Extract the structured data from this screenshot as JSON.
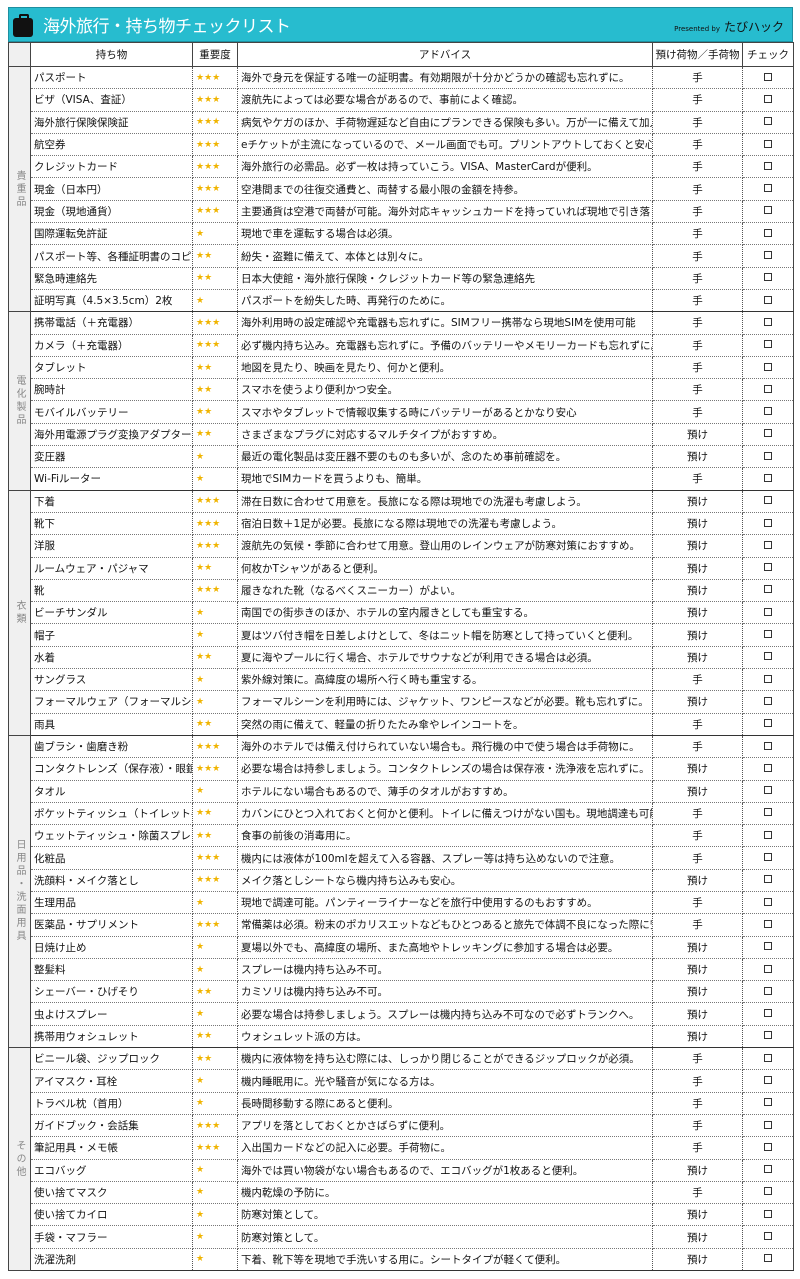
{
  "header": {
    "title": "海外旅行・持ち物チェックリスト",
    "presented_by": "Presented by",
    "brand": "たびハック",
    "accent_color": "#27bccf"
  },
  "columns": {
    "item": "持ち物",
    "importance": "重要度",
    "advice": "アドバイス",
    "baggage": "預け荷物／手荷物",
    "check": "チェック"
  },
  "star_color": "#f0b400",
  "categories": [
    {
      "name": "貴重品",
      "rows": [
        [
          "パスポート",
          "★★★",
          "海外で身元を保証する唯一の証明書。有効期限が十分かどうかの確認も忘れずに。",
          "手"
        ],
        [
          "ビザ（VISA、査証）",
          "★★★",
          "渡航先によっては必要な場合があるので、事前によく確認。",
          "手"
        ],
        [
          "海外旅行保険保険証",
          "★★★",
          "病気やケガのほか、手荷物遅延など自由にプランできる保険も多い。万が一に備えて加入を。",
          "手"
        ],
        [
          "航空券",
          "★★★",
          "eチケットが主流になっているので、メール画面でも可。プリントアウトしておくと安心。",
          "手"
        ],
        [
          "クレジットカード",
          "★★★",
          "海外旅行の必需品。必ず一枚は持っていこう。VISA、MasterCardが便利。",
          "手"
        ],
        [
          "現金（日本円）",
          "★★★",
          "空港間までの往復交通費と、両替する最小限の金額を持参。",
          "手"
        ],
        [
          "現金（現地通貨）",
          "★★★",
          "主要通貨は空港で両替が可能。海外対応キャッシュカードを持っていれば現地で引き落とし可能",
          "手"
        ],
        [
          "国際運転免許証",
          "★",
          "現地で車を運転する場合は必須。",
          "手"
        ],
        [
          "パスポート等、各種証明書のコピー",
          "★★",
          "紛失・盗難に備えて、本体とは別々に。",
          "手"
        ],
        [
          "緊急時連絡先",
          "★★",
          "日本大使館・海外旅行保険・クレジットカード等の緊急連絡先",
          "手"
        ],
        [
          "証明写真（4.5×3.5cm）2枚",
          "★",
          "パスポートを紛失した時、再発行のために。",
          "手"
        ]
      ]
    },
    {
      "name": "電化製品",
      "rows": [
        [
          "携帯電話（＋充電器）",
          "★★★",
          "海外利用時の設定確認や充電器も忘れずに。SIMフリー携帯なら現地SIMを使用可能",
          "手"
        ],
        [
          "カメラ（＋充電器）",
          "★★★",
          "必ず機内持ち込み。充電器も忘れずに。予備のバッテリーやメモリーカードも忘れずに。",
          "手"
        ],
        [
          "タブレット",
          "★★",
          "地図を見たり、映画を見たり、何かと便利。",
          "手"
        ],
        [
          "腕時計",
          "★★",
          "スマホを使うより便利かつ安全。",
          "手"
        ],
        [
          "モバイルバッテリー",
          "★★",
          "スマホやタブレットで情報収集する時にバッテリーがあるとかなり安心",
          "手"
        ],
        [
          "海外用電源プラグ変換アダプター",
          "★★",
          "さまざまなプラグに対応するマルチタイプがおすすめ。",
          "預け"
        ],
        [
          "変圧器",
          "★",
          "最近の電化製品は変圧器不要のものも多いが、念のため事前確認を。",
          "預け"
        ],
        [
          "Wi-Fiルーター",
          "★",
          "現地でSIMカードを買うよりも、簡単。",
          "手"
        ]
      ]
    },
    {
      "name": "衣類",
      "rows": [
        [
          "下着",
          "★★★",
          "滞在日数に合わせて用意を。長旅になる際は現地での洗濯も考慮しよう。",
          "預け"
        ],
        [
          "靴下",
          "★★★",
          "宿泊日数＋1足が必要。長旅になる際は現地での洗濯も考慮しよう。",
          "預け"
        ],
        [
          "洋服",
          "★★★",
          "渡航先の気候・季節に合わせて用意。登山用のレインウェアが防寒対策におすすめ。",
          "預け"
        ],
        [
          "ルームウェア・パジャマ",
          "★★",
          "何枚かTシャツがあると便利。",
          "預け"
        ],
        [
          "靴",
          "★★★",
          "履きなれた靴（なるべくスニーカー）がよい。",
          "預け"
        ],
        [
          "ビーチサンダル",
          "★",
          "南国での街歩きのほか、ホテルの室内履きとしても重宝する。",
          "預け"
        ],
        [
          "帽子",
          "★",
          "夏はツバ付き帽を日差しよけとして、冬はニット帽を防寒として持っていくと便利。",
          "預け"
        ],
        [
          "水着",
          "★★",
          "夏に海やプールに行く場合、ホテルでサウナなどが利用できる場合は必須。",
          "預け"
        ],
        [
          "サングラス",
          "★",
          "紫外線対策に。高緯度の場所へ行く時も重宝する。",
          "手"
        ],
        [
          "フォーマルウェア（フォーマルシューズ）",
          "★",
          "フォーマルシーンを利用時には、ジャケット、ワンピースなどが必要。靴も忘れずに。",
          "預け"
        ],
        [
          "雨具",
          "★★",
          "突然の雨に備えて、軽量の折りたたみ傘やレインコートを。",
          "手"
        ]
      ]
    },
    {
      "name": "日用品・洗面用具",
      "rows": [
        [
          "歯ブラシ・歯磨き粉",
          "★★★",
          "海外のホテルでは備え付けられていない場合も。飛行機の中で使う場合は手荷物に。",
          "手"
        ],
        [
          "コンタクトレンズ（保存液）・眼鏡",
          "★★★",
          "必要な場合は持参しましょう。コンタクトレンズの場合は保存液・洗浄液を忘れずに。",
          "預け"
        ],
        [
          "タオル",
          "★",
          "ホテルにない場合もあるので、薄手のタオルがおすすめ。",
          "預け"
        ],
        [
          "ポケットティッシュ（トイレットペーパー）",
          "★★",
          "カバンにひとつ入れておくと何かと便利。トイレに備えつけがない国も。現地調達も可能。",
          "手"
        ],
        [
          "ウェットティッシュ・除菌スプレー",
          "★★",
          "食事の前後の消毒用に。",
          "手"
        ],
        [
          "化粧品",
          "★★★",
          "機内には液体が100mlを超えて入る容器、スプレー等は持ち込めないので注意。",
          "手"
        ],
        [
          "洗顔料・メイク落とし",
          "★★★",
          "メイク落としシートなら機内持ち込みも安心。",
          "預け"
        ],
        [
          "生理用品",
          "★",
          "現地で調達可能。パンティーライナーなどを旅行中使用するのもおすすめ。",
          "手"
        ],
        [
          "医薬品・サプリメント",
          "★★★",
          "常備薬は必須。粉末のポカリスエットなどもひとつあると旅先で体調不良になった際に安心。",
          "手"
        ],
        [
          "日焼け止め",
          "★",
          "夏場以外でも、高緯度の場所、また高地やトレッキングに参加する場合は必要。",
          "預け"
        ],
        [
          "整髪料",
          "★",
          "スプレーは機内持ち込み不可。",
          "預け"
        ],
        [
          "シェーバー・ひげそり",
          "★★",
          "カミソリは機内持ち込み不可。",
          "預け"
        ],
        [
          "虫よけスプレー",
          "★",
          "必要な場合は持参しましょう。スプレーは機内持ち込み不可なので必ずトランクへ。",
          "預け"
        ],
        [
          "携帯用ウォシュレット",
          "★★",
          "ウォシュレット派の方は。",
          "預け"
        ]
      ]
    },
    {
      "name": "その他",
      "rows": [
        [
          "ビニール袋、ジップロック",
          "★★",
          "機内に液体物を持ち込む際には、しっかり閉じることができるジップロックが必須。",
          "手"
        ],
        [
          "アイマスク・耳栓",
          "★",
          "機内睡眠用に。光や騒音が気になる方は。",
          "手"
        ],
        [
          "トラベル枕（首用）",
          "★",
          "長時間移動する際にあると便利。",
          "手"
        ],
        [
          "ガイドブック・会話集",
          "★★★",
          "アプリを落としておくとかさばらずに便利。",
          "手"
        ],
        [
          "筆記用具・メモ帳",
          "★★★",
          "入出国カードなどの記入に必要。手荷物に。",
          "手"
        ],
        [
          "エコバッグ",
          "★",
          "海外では買い物袋がない場合もあるので、エコバッグが1枚あると便利。",
          "預け"
        ],
        [
          "使い捨てマスク",
          "★",
          "機内乾燥の予防に。",
          "手"
        ],
        [
          "使い捨てカイロ",
          "★",
          "防寒対策として。",
          "預け"
        ],
        [
          "手袋・マフラー",
          "★",
          "防寒対策として。",
          "預け"
        ],
        [
          "洗濯洗剤",
          "★",
          "下着、靴下等を現地で手洗いする用に。シートタイプが軽くて便利。",
          "預け"
        ]
      ]
    }
  ]
}
